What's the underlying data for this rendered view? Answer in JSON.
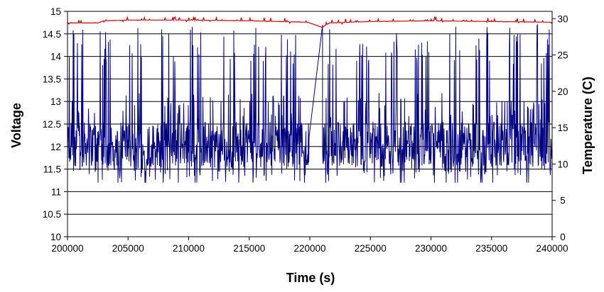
{
  "chart_data": {
    "type": "line",
    "xlabel": "Time (s)",
    "ylabel": "Voltage",
    "y2label": "Temperature (C)",
    "xlim": [
      200000,
      240000
    ],
    "ylim": [
      10,
      15
    ],
    "y2lim": [
      0,
      31
    ],
    "x_ticks": [
      "200000",
      "205000",
      "210000",
      "215000",
      "220000",
      "225000",
      "230000",
      "235000",
      "240000"
    ],
    "y_ticks": [
      "10",
      "10.5",
      "11",
      "11.5",
      "12",
      "12.5",
      "13",
      "13.5",
      "14",
      "14.5",
      "15"
    ],
    "y2_ticks": [
      "0",
      "5",
      "10",
      "15",
      "20",
      "25",
      "30"
    ],
    "grid": "horizontal",
    "series": [
      {
        "axis": "left",
        "color": "#000080",
        "segments": [
          {
            "x_range": [
              200000,
              219950
            ],
            "baseline": 11.9,
            "bursts_per_5000s": 2,
            "burst_peak": 14.7,
            "burst_low": 11.35,
            "noise_high": 12.6,
            "min": 11.2
          },
          {
            "x_range": [
              221050,
              240000
            ],
            "baseline": 11.9,
            "bursts_per_5000s": 2,
            "burst_peak": 14.7,
            "burst_low": 11.35,
            "noise_high": 12.6,
            "min": 11.2
          }
        ]
      },
      {
        "axis": "right",
        "color": "#cc0000",
        "points": [
          [
            200000,
            29.4
          ],
          [
            202500,
            29.4
          ],
          [
            203000,
            29.7
          ],
          [
            205000,
            29.8
          ],
          [
            210000,
            29.8
          ],
          [
            215000,
            29.7
          ],
          [
            219800,
            29.5
          ],
          [
            220000,
            29.4
          ],
          [
            221000,
            28.8
          ],
          [
            221600,
            29.4
          ],
          [
            225000,
            29.6
          ],
          [
            230000,
            29.7
          ],
          [
            235000,
            29.6
          ],
          [
            240000,
            29.5
          ]
        ],
        "noise": 0.35
      }
    ]
  }
}
